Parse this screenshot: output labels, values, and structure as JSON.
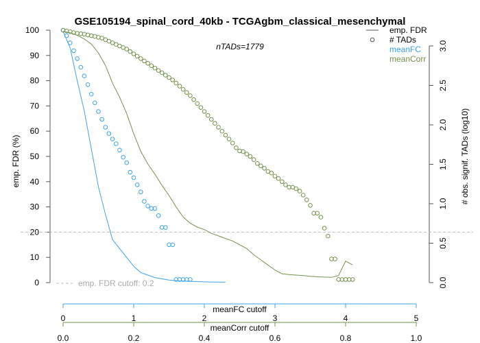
{
  "chart_data": {
    "type": "line",
    "title": "GSE105194_spinal_cord_40kb - TCGAgbm_classical_mesenchymal",
    "annotation": "nTADs=1779",
    "ylabel": "emp. FDR (%)",
    "ylabel_right": "# obs. signif. TADs (log10)",
    "ylim": [
      0,
      100
    ],
    "yticks": [
      0,
      10,
      20,
      30,
      40,
      50,
      60,
      70,
      80,
      90,
      100
    ],
    "ylim_right": [
      0,
      3.2
    ],
    "yticks_right": [
      0.0,
      0.5,
      1.0,
      1.5,
      2.0,
      2.5,
      3.0
    ],
    "yticks_right_labels": [
      "0.0",
      "0.5",
      "1.0",
      "1.5",
      "2.0",
      "2.5",
      "3.0"
    ],
    "fdr_cutoff": 20,
    "fdr_cutoff_label": "emp. FDR cutoff: 0.2",
    "colors": {
      "meanFC": "#3ba3ec",
      "meanCorr": "#74914a",
      "cutoff": "#bbbbbb",
      "axis": "#555555"
    },
    "axes_bottom": [
      {
        "name": "meanFC",
        "label": "meanFC cutoff",
        "range": [
          0,
          5
        ],
        "ticks": [
          0,
          1,
          2,
          3,
          4,
          5
        ],
        "tick_labels": [
          "0",
          "1",
          "2",
          "3",
          "4",
          "5"
        ]
      },
      {
        "name": "meanCorr",
        "label": "meanCorr cutoff",
        "range": [
          0,
          1.0
        ],
        "ticks": [
          0.0,
          0.2,
          0.4,
          0.6,
          0.8,
          1.0
        ],
        "tick_labels": [
          "0.0",
          "0.2",
          "0.4",
          "0.6",
          "0.8",
          "1.0"
        ]
      }
    ],
    "legend": {
      "position": "top-right",
      "items": [
        {
          "label": "emp. FDR",
          "symbol": "line",
          "color": "#555555"
        },
        {
          "label": "# TADs",
          "symbol": "circle",
          "color": "#555555"
        },
        {
          "label": "meanFC",
          "symbol": "none",
          "color": "#3ba3ec"
        },
        {
          "label": "meanCorr",
          "symbol": "none",
          "color": "#74914a"
        }
      ]
    },
    "series": [
      {
        "name": "meanFC",
        "axis": "meanFC",
        "fdr_line": {
          "x": [
            0,
            0.1,
            0.2,
            0.3,
            0.4,
            0.5,
            0.6,
            0.7,
            0.8,
            0.9,
            1.0,
            1.1,
            1.2,
            1.3,
            1.4,
            1.5,
            1.6,
            1.7,
            1.8,
            1.9,
            2.0,
            2.1,
            2.2,
            2.3
          ],
          "y": [
            99.5,
            93,
            80,
            68,
            53,
            38,
            27,
            17,
            13.5,
            10,
            6.5,
            4,
            3,
            2,
            1.5,
            1,
            0.8,
            0.6,
            0.5,
            0.4,
            0.3,
            0.25,
            0.2,
            0.2
          ]
        },
        "tads_points": {
          "x": [
            0,
            0.05,
            0.1,
            0.15,
            0.2,
            0.25,
            0.3,
            0.35,
            0.4,
            0.45,
            0.5,
            0.55,
            0.6,
            0.65,
            0.7,
            0.75,
            0.8,
            0.85,
            0.9,
            0.95,
            1.0,
            1.05,
            1.1,
            1.15,
            1.2,
            1.25,
            1.3,
            1.35,
            1.4,
            1.45,
            1.5,
            1.55,
            1.6,
            1.65,
            1.7,
            1.75,
            1.8
          ],
          "y": [
            3.2,
            3.13,
            3.04,
            2.94,
            2.84,
            2.73,
            2.62,
            2.51,
            2.39,
            2.28,
            2.17,
            2.07,
            1.97,
            1.89,
            1.82,
            1.76,
            1.68,
            1.59,
            1.52,
            1.4,
            1.33,
            1.24,
            1.15,
            1.03,
            0.97,
            0.94,
            0.94,
            0.85,
            0.7,
            0.7,
            0.48,
            0.48,
            0.04,
            0.04,
            0.04,
            0.04,
            0.04
          ]
        }
      },
      {
        "name": "meanCorr",
        "axis": "meanCorr",
        "fdr_line": {
          "x": [
            0,
            0.02,
            0.04,
            0.06,
            0.08,
            0.1,
            0.12,
            0.14,
            0.16,
            0.18,
            0.2,
            0.22,
            0.24,
            0.26,
            0.28,
            0.3,
            0.32,
            0.34,
            0.36,
            0.38,
            0.4,
            0.42,
            0.44,
            0.46,
            0.48,
            0.5,
            0.52,
            0.54,
            0.56,
            0.58,
            0.6,
            0.62,
            0.64,
            0.66,
            0.68,
            0.7,
            0.72,
            0.74,
            0.76,
            0.78,
            0.8,
            0.82
          ],
          "y": [
            99.5,
            99,
            98,
            96.5,
            94.5,
            91,
            86,
            79,
            73.5,
            67,
            59,
            52,
            47,
            43,
            38.5,
            34.5,
            30,
            26,
            23.5,
            22,
            21,
            19.5,
            18.5,
            17.5,
            16.5,
            15,
            13.5,
            11,
            9,
            7,
            5,
            3.5,
            3.2,
            3,
            2.8,
            2.5,
            2.3,
            2.2,
            2.1,
            2.8,
            8.5,
            7
          ]
        },
        "tads_points": {
          "x": [
            0,
            0.01,
            0.02,
            0.03,
            0.04,
            0.05,
            0.06,
            0.07,
            0.08,
            0.09,
            0.1,
            0.11,
            0.12,
            0.13,
            0.14,
            0.15,
            0.16,
            0.17,
            0.18,
            0.19,
            0.2,
            0.21,
            0.22,
            0.23,
            0.24,
            0.25,
            0.26,
            0.27,
            0.28,
            0.29,
            0.3,
            0.31,
            0.32,
            0.33,
            0.34,
            0.35,
            0.36,
            0.37,
            0.38,
            0.39,
            0.4,
            0.41,
            0.42,
            0.43,
            0.44,
            0.45,
            0.46,
            0.47,
            0.48,
            0.49,
            0.5,
            0.51,
            0.52,
            0.53,
            0.54,
            0.55,
            0.56,
            0.57,
            0.58,
            0.59,
            0.6,
            0.61,
            0.62,
            0.63,
            0.64,
            0.65,
            0.66,
            0.67,
            0.68,
            0.69,
            0.7,
            0.71,
            0.72,
            0.73,
            0.74,
            0.75,
            0.76,
            0.77,
            0.78,
            0.79,
            0.8,
            0.81,
            0.82
          ],
          "y": [
            3.2,
            3.19,
            3.18,
            3.17,
            3.16,
            3.155,
            3.15,
            3.14,
            3.13,
            3.12,
            3.11,
            3.1,
            3.08,
            3.06,
            3.04,
            3.02,
            3.0,
            2.98,
            2.96,
            2.93,
            2.9,
            2.87,
            2.84,
            2.81,
            2.78,
            2.75,
            2.72,
            2.69,
            2.66,
            2.63,
            2.6,
            2.57,
            2.53,
            2.49,
            2.45,
            2.41,
            2.37,
            2.32,
            2.27,
            2.22,
            2.17,
            2.12,
            2.07,
            2.02,
            1.97,
            1.92,
            1.87,
            1.82,
            1.77,
            1.71,
            1.67,
            1.66,
            1.63,
            1.6,
            1.56,
            1.51,
            1.48,
            1.45,
            1.41,
            1.39,
            1.35,
            1.32,
            1.28,
            1.24,
            1.21,
            1.21,
            1.19,
            1.16,
            1.11,
            1.05,
            0.98,
            0.88,
            0.88,
            0.83,
            0.69,
            0.59,
            0.3,
            0.3,
            0.04,
            0.04,
            0.04,
            0.04,
            0.04
          ]
        }
      }
    ]
  }
}
